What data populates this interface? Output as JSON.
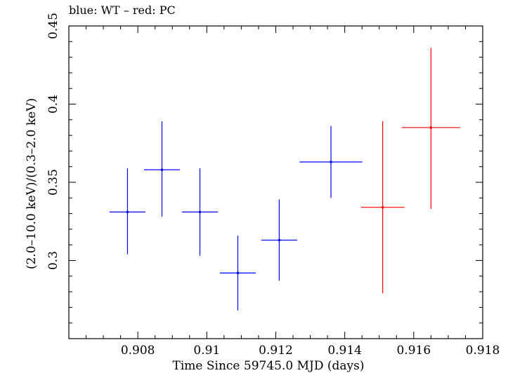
{
  "chart_data": {
    "type": "scatter",
    "title": "blue: WT – red: PC",
    "xlabel": "Time Since 59745.0 MJD (days)",
    "ylabel": "(2.0–10.0 keV)/(0.3–2.0 keV)",
    "xlim": [
      0.906,
      0.918
    ],
    "ylim": [
      0.25,
      0.45
    ],
    "x_ticks": [
      {
        "value": 0.908,
        "label": "0.908"
      },
      {
        "value": 0.91,
        "label": "0.91"
      },
      {
        "value": 0.912,
        "label": "0.912"
      },
      {
        "value": 0.914,
        "label": "0.914"
      },
      {
        "value": 0.916,
        "label": "0.916"
      },
      {
        "value": 0.918,
        "label": "0.918"
      }
    ],
    "y_ticks": [
      {
        "value": 0.3,
        "label": "0.3"
      },
      {
        "value": 0.35,
        "label": "0.35"
      },
      {
        "value": 0.4,
        "label": "0.4"
      },
      {
        "value": 0.45,
        "label": "0.45"
      }
    ],
    "series": [
      {
        "name": "WT",
        "color": "#0000ff",
        "points": [
          {
            "x": 0.9077,
            "xerr": 0.00052,
            "y": 0.331,
            "yerr_low": 0.027,
            "yerr_high": 0.028
          },
          {
            "x": 0.9087,
            "xerr": 0.00052,
            "y": 0.358,
            "yerr_low": 0.03,
            "yerr_high": 0.031
          },
          {
            "x": 0.9098,
            "xerr": 0.00052,
            "y": 0.331,
            "yerr_low": 0.028,
            "yerr_high": 0.028
          },
          {
            "x": 0.9109,
            "xerr": 0.00052,
            "y": 0.292,
            "yerr_low": 0.024,
            "yerr_high": 0.024
          },
          {
            "x": 0.9121,
            "xerr": 0.00052,
            "y": 0.313,
            "yerr_low": 0.026,
            "yerr_high": 0.026
          },
          {
            "x": 0.9136,
            "xerr": 0.00091,
            "y": 0.363,
            "yerr_low": 0.023,
            "yerr_high": 0.023
          }
        ]
      },
      {
        "name": "PC",
        "color": "#ff0000",
        "points": [
          {
            "x": 0.9151,
            "xerr": 0.00063,
            "y": 0.334,
            "yerr_low": 0.055,
            "yerr_high": 0.055
          },
          {
            "x": 0.9165,
            "xerr": 0.00085,
            "y": 0.385,
            "yerr_low": 0.052,
            "yerr_high": 0.051
          }
        ]
      }
    ]
  }
}
